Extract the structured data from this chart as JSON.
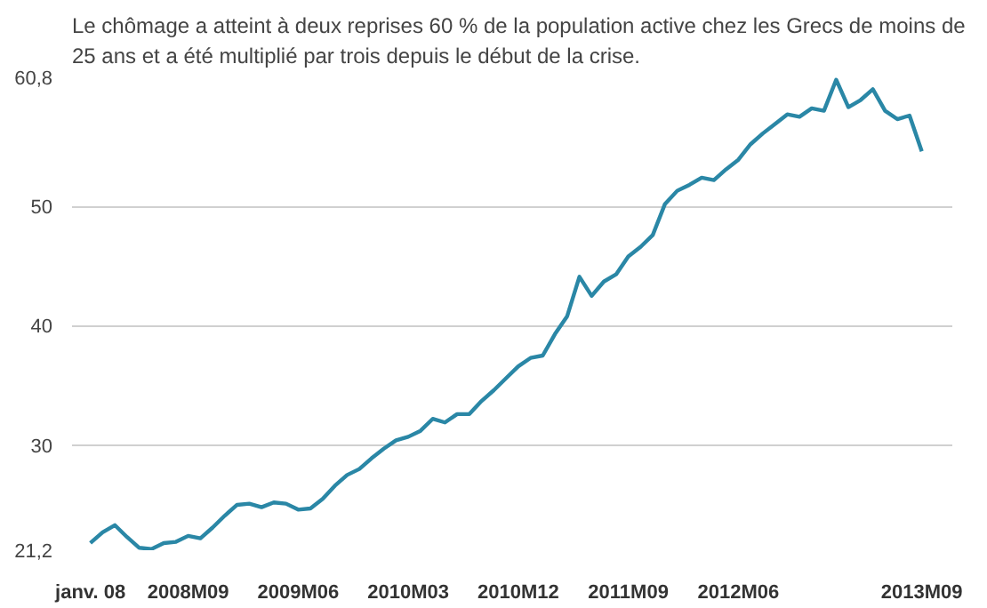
{
  "chart_data": {
    "type": "line",
    "title": "Le chômage a atteint à deux reprises 60 % de la population active chez les Grecs de moins de 25 ans et a été multiplié par trois depuis le début de la crise.",
    "categories": [
      "janv. 08",
      null,
      null,
      null,
      null,
      null,
      null,
      null,
      "2008M09",
      null,
      null,
      null,
      null,
      null,
      null,
      null,
      null,
      "2009M06",
      null,
      null,
      null,
      null,
      null,
      null,
      null,
      null,
      "2010M03",
      null,
      null,
      null,
      null,
      null,
      null,
      null,
      null,
      "2010M12",
      null,
      null,
      null,
      null,
      null,
      null,
      null,
      null,
      "2011M09",
      null,
      null,
      null,
      null,
      null,
      null,
      null,
      null,
      "2012M06",
      null,
      null,
      null,
      null,
      null,
      null,
      null,
      null,
      null,
      null,
      null,
      null,
      null,
      null,
      "2013M09"
    ],
    "series": [
      {
        "color": "#2a87a6",
        "values": [
          21.8,
          22.7,
          23.3,
          22.3,
          21.4,
          21.3,
          21.8,
          21.9,
          22.4,
          22.2,
          23.1,
          24.1,
          25.0,
          25.1,
          24.8,
          25.2,
          25.1,
          24.6,
          24.7,
          25.5,
          26.6,
          27.5,
          28.0,
          28.9,
          29.7,
          30.4,
          30.7,
          31.2,
          32.2,
          31.9,
          32.6,
          32.6,
          33.7,
          34.6,
          35.6,
          36.6,
          37.3,
          37.5,
          39.3,
          40.8,
          44.1,
          42.5,
          43.7,
          44.3,
          45.8,
          46.6,
          47.6,
          50.2,
          51.3,
          51.8,
          52.4,
          52.2,
          53.1,
          53.9,
          55.2,
          56.1,
          56.9,
          57.7,
          57.5,
          58.2,
          58.0,
          60.6,
          58.3,
          58.9,
          59.8,
          58.0,
          57.3,
          57.6,
          54.6
        ]
      }
    ],
    "ylim": [
      21.2,
      60.8
    ],
    "yticks": [
      {
        "value": 21.2,
        "label": "21,2"
      },
      30,
      40,
      50,
      {
        "value": 60.8,
        "label": "60,8"
      }
    ],
    "grid": "y",
    "marker": "none",
    "line_style": "solid"
  }
}
